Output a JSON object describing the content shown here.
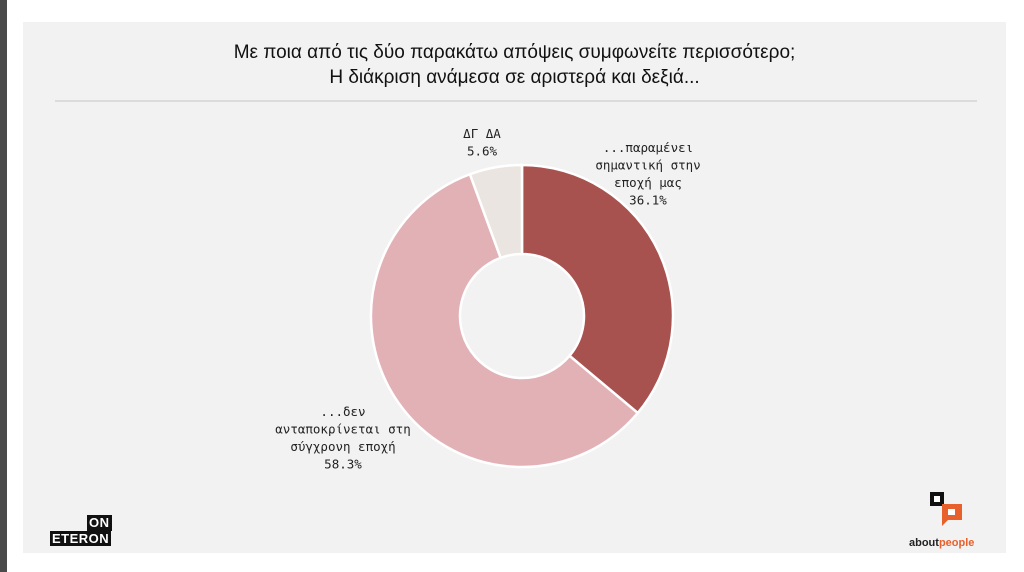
{
  "title_lines": [
    "Με ποια από τις δύο παρακάτω απόψεις συμφωνείτε περισσότερο;",
    "Η διάκριση ανάμεσα σε αριστερά και δεξιά..."
  ],
  "chart_data": {
    "type": "pie",
    "donut": true,
    "slices": [
      {
        "label_lines": [
          "...παραμένει",
          "σημαντική στην",
          "εποχή μας"
        ],
        "value": 36.1,
        "value_label": "36.1%",
        "color": "#a8524f"
      },
      {
        "label_lines": [
          "...δεν",
          "ανταποκρίνεται στη",
          "σύγχρονη εποχή"
        ],
        "value": 58.3,
        "value_label": "58.3%",
        "color": "#e2b1b6"
      },
      {
        "label_lines": [
          "ΔΓ ΔΑ"
        ],
        "value": 5.6,
        "value_label": "5.6%",
        "color": "#ebe5e1"
      }
    ]
  },
  "logos": {
    "left_top": "ON",
    "left_bottom": "ETERON",
    "right_about": "about",
    "right_people": "people",
    "brand_color": "#e8602c"
  }
}
